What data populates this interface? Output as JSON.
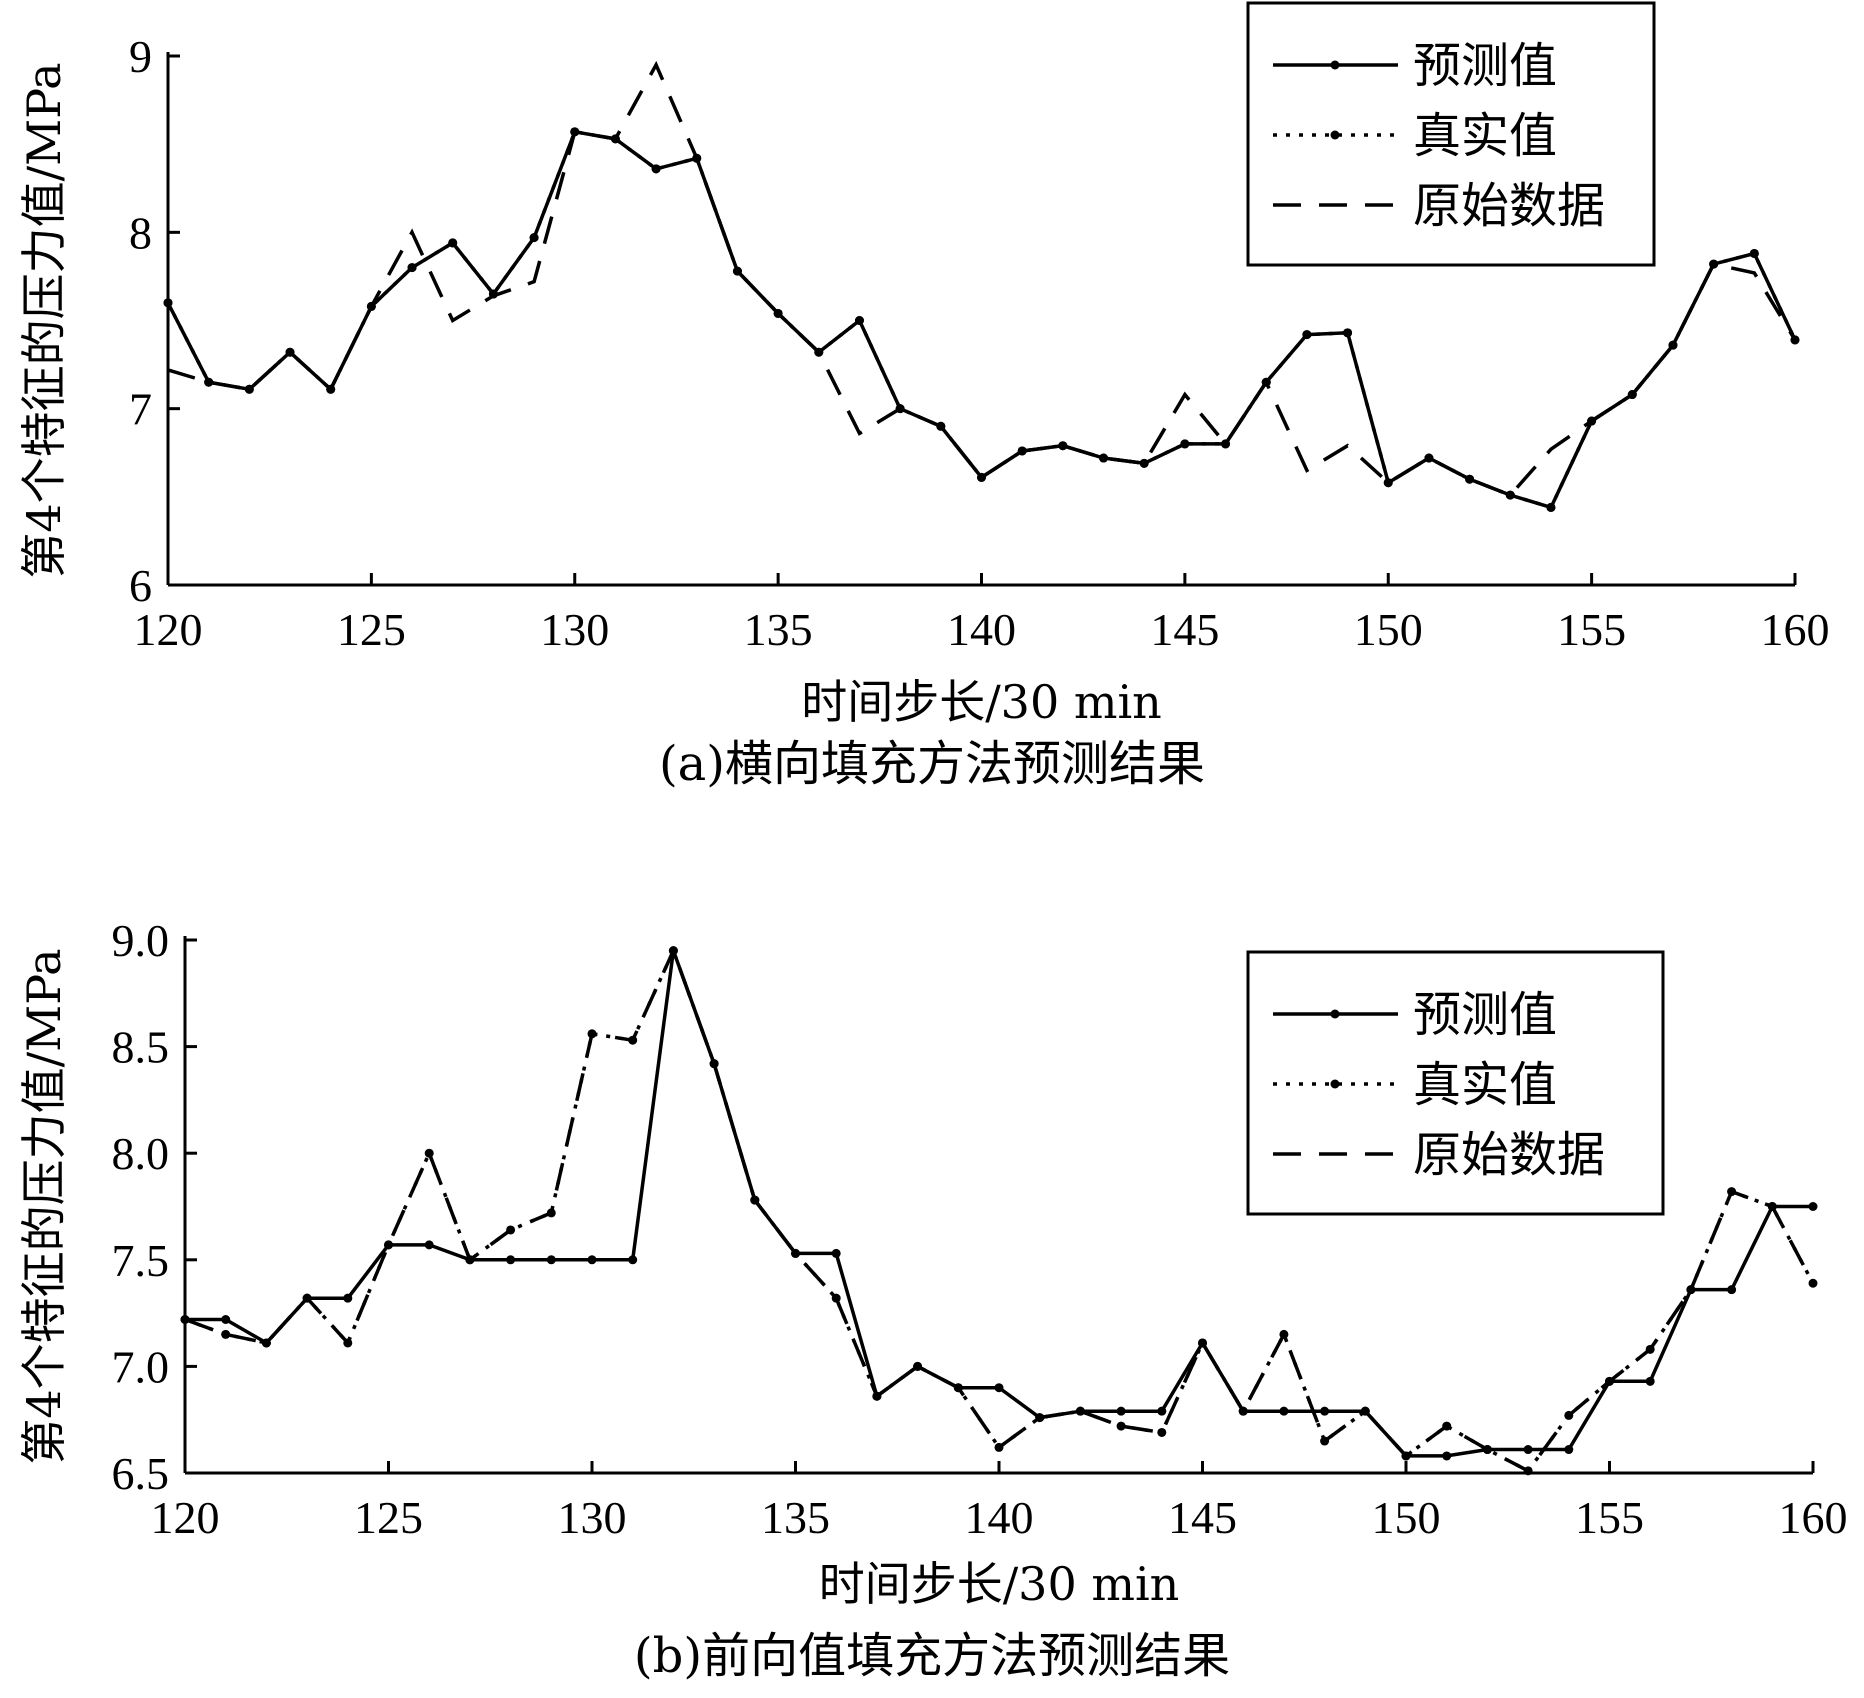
{
  "chart_data": [
    {
      "type": "line",
      "caption": "(a)横向填充方法预测结果",
      "xlabel": "时间步长/30 min",
      "ylabel": "第4个特征的压力值/MPa",
      "xlim": [
        120,
        160
      ],
      "ylim": [
        6,
        9
      ],
      "xticks": [
        "120",
        "125",
        "130",
        "135",
        "140",
        "145",
        "150",
        "155",
        "160"
      ],
      "yticks": [
        "6",
        "7",
        "8",
        "9"
      ],
      "legend_position": "top-right",
      "series": [
        {
          "name": "预测值",
          "style": "solid-marker",
          "x": [
            120,
            121,
            122,
            123,
            124,
            125,
            126,
            127,
            128,
            129,
            130,
            131,
            132,
            133,
            134,
            135,
            136,
            137,
            138,
            139,
            140,
            141,
            142,
            143,
            144,
            145,
            146,
            147,
            148,
            149,
            150,
            151,
            152,
            153,
            154,
            155,
            156,
            157,
            158,
            159,
            160
          ],
          "values": [
            7.6,
            7.15,
            7.11,
            7.32,
            7.11,
            7.58,
            7.8,
            7.94,
            7.65,
            7.97,
            8.57,
            8.53,
            8.36,
            8.42,
            7.78,
            7.54,
            7.32,
            7.5,
            7.0,
            6.9,
            6.61,
            6.76,
            6.79,
            6.72,
            6.69,
            6.8,
            6.8,
            7.15,
            7.42,
            7.43,
            6.58,
            6.72,
            6.6,
            6.51,
            6.44,
            6.93,
            7.08,
            7.36,
            7.82,
            7.88,
            7.39
          ]
        },
        {
          "name": "真实值",
          "style": "dotted-marker",
          "x": [
            120,
            121,
            122,
            123,
            124,
            125,
            126,
            127,
            128,
            129,
            130,
            131,
            132,
            133,
            134,
            135,
            136,
            137,
            138,
            139,
            140,
            141,
            142,
            143,
            144,
            145,
            146,
            147,
            148,
            149,
            150,
            151,
            152,
            153,
            154,
            155,
            156,
            157,
            158,
            159,
            160
          ],
          "values": [
            7.6,
            7.15,
            7.11,
            7.32,
            7.11,
            7.58,
            7.8,
            7.94,
            7.65,
            7.97,
            8.57,
            8.53,
            8.36,
            8.42,
            7.78,
            7.54,
            7.32,
            7.5,
            7.0,
            6.9,
            6.61,
            6.76,
            6.79,
            6.72,
            6.69,
            6.8,
            6.8,
            7.15,
            7.42,
            7.43,
            6.58,
            6.72,
            6.6,
            6.51,
            6.44,
            6.93,
            7.08,
            7.36,
            7.82,
            7.88,
            7.39
          ]
        },
        {
          "name": "原始数据",
          "style": "dashed",
          "x": [
            120,
            121,
            122,
            123,
            124,
            125,
            126,
            127,
            128,
            129,
            130,
            131,
            132,
            133,
            134,
            135,
            136,
            137,
            138,
            139,
            140,
            141,
            142,
            143,
            144,
            145,
            146,
            147,
            148,
            149,
            150,
            151,
            152,
            153,
            154,
            155,
            156,
            157,
            158,
            159,
            160
          ],
          "values": [
            7.22,
            7.15,
            7.11,
            7.32,
            7.11,
            7.58,
            8.0,
            7.5,
            7.64,
            7.72,
            8.57,
            8.53,
            8.95,
            8.42,
            7.78,
            7.54,
            7.32,
            6.86,
            7.0,
            6.9,
            6.61,
            6.76,
            6.79,
            6.72,
            6.69,
            7.08,
            6.8,
            7.15,
            6.65,
            6.79,
            6.58,
            6.72,
            6.6,
            6.51,
            6.77,
            6.93,
            7.08,
            7.36,
            7.82,
            7.77,
            7.39
          ]
        }
      ]
    },
    {
      "type": "line",
      "caption": "(b)前向值填充方法预测结果",
      "xlabel": "时间步长/30 min",
      "ylabel": "第4个特征的压力值/MPa",
      "xlim": [
        120,
        160
      ],
      "ylim": [
        6.5,
        9.0
      ],
      "xticks": [
        "120",
        "125",
        "130",
        "135",
        "140",
        "145",
        "150",
        "155",
        "160"
      ],
      "yticks": [
        "6.5",
        "7.0",
        "7.5",
        "8.0",
        "8.5",
        "9.0"
      ],
      "legend_position": "top-right",
      "series": [
        {
          "name": "预测值",
          "style": "solid-marker",
          "x": [
            120,
            121,
            122,
            123,
            124,
            125,
            126,
            127,
            128,
            129,
            130,
            131,
            132,
            133,
            134,
            135,
            136,
            137,
            138,
            139,
            140,
            141,
            142,
            143,
            144,
            145,
            146,
            147,
            148,
            149,
            150,
            151,
            152,
            153,
            154,
            155,
            156,
            157,
            158,
            159,
            160
          ],
          "values": [
            7.22,
            7.22,
            7.11,
            7.32,
            7.32,
            7.57,
            7.57,
            7.5,
            7.5,
            7.5,
            7.5,
            7.5,
            8.95,
            8.42,
            7.78,
            7.53,
            7.53,
            6.86,
            7.0,
            6.9,
            6.9,
            6.76,
            6.79,
            6.79,
            6.79,
            7.11,
            6.79,
            6.79,
            6.79,
            6.79,
            6.58,
            6.58,
            6.61,
            6.61,
            6.61,
            6.93,
            6.93,
            7.36,
            7.36,
            7.75,
            7.75
          ]
        },
        {
          "name": "真实值",
          "style": "dotted-marker",
          "x": [
            120,
            121,
            122,
            123,
            124,
            125,
            126,
            127,
            128,
            129,
            130,
            131,
            132,
            133,
            134,
            135,
            136,
            137,
            138,
            139,
            140,
            141,
            142,
            143,
            144,
            145,
            146,
            147,
            148,
            149,
            150,
            151,
            152,
            153,
            154,
            155,
            156,
            157,
            158,
            159,
            160
          ],
          "values": [
            7.22,
            7.15,
            7.11,
            7.32,
            7.11,
            7.57,
            8.0,
            7.5,
            7.64,
            7.72,
            8.56,
            8.53,
            8.95,
            8.42,
            7.78,
            7.53,
            7.32,
            6.86,
            7.0,
            6.9,
            6.62,
            6.76,
            6.79,
            6.72,
            6.69,
            7.11,
            6.79,
            7.15,
            6.65,
            6.79,
            6.58,
            6.72,
            6.61,
            6.51,
            6.77,
            6.93,
            7.08,
            7.36,
            7.82,
            7.75,
            7.39
          ]
        },
        {
          "name": "原始数据",
          "style": "dashed",
          "x": [
            120,
            121,
            122,
            123,
            124,
            125,
            126,
            127,
            128,
            129,
            130,
            131,
            132,
            133,
            134,
            135,
            136,
            137,
            138,
            139,
            140,
            141,
            142,
            143,
            144,
            145,
            146,
            147,
            148,
            149,
            150,
            151,
            152,
            153,
            154,
            155,
            156,
            157,
            158,
            159,
            160
          ],
          "values": [
            7.22,
            7.15,
            7.11,
            7.32,
            7.11,
            7.57,
            8.0,
            7.5,
            7.64,
            7.72,
            8.56,
            8.53,
            8.95,
            8.42,
            7.78,
            7.53,
            7.32,
            6.86,
            7.0,
            6.9,
            6.62,
            6.76,
            6.79,
            6.72,
            6.69,
            7.11,
            6.79,
            7.15,
            6.65,
            6.79,
            6.58,
            6.72,
            6.61,
            6.51,
            6.77,
            6.93,
            7.08,
            7.36,
            7.82,
            7.75,
            7.39
          ]
        }
      ]
    }
  ]
}
